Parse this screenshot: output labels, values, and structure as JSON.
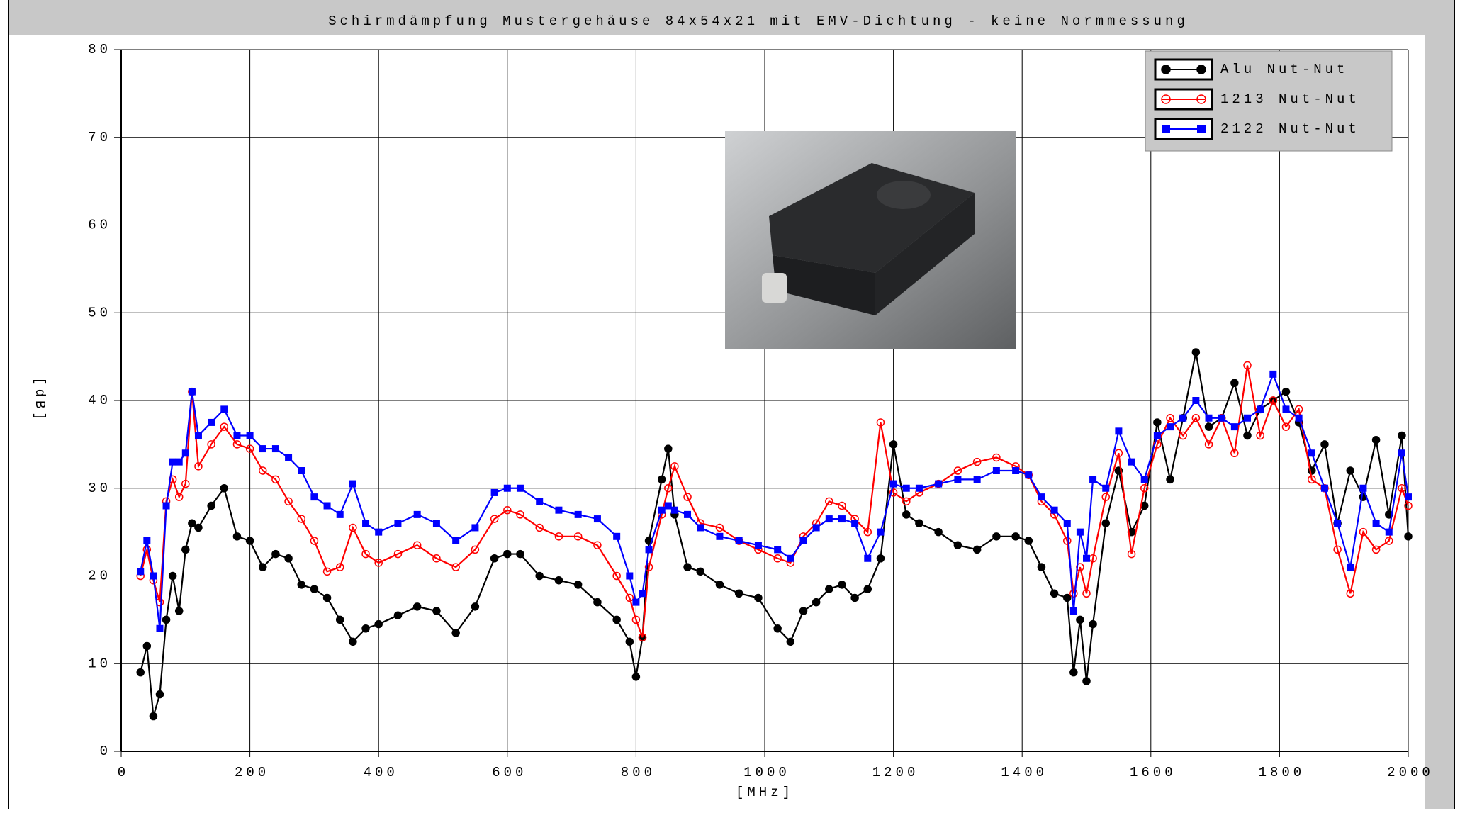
{
  "chart_data": {
    "type": "line",
    "title": "Schirmdämpfung Mustergehäuse 84x54x21 mit EMV-Dichtung - keine Normmessung",
    "xlabel": "[MHz]",
    "ylabel": "[dB]",
    "x": [
      30,
      40,
      50,
      60,
      70,
      80,
      90,
      100,
      110,
      120,
      140,
      160,
      180,
      200,
      220,
      240,
      260,
      280,
      300,
      320,
      340,
      360,
      380,
      400,
      430,
      460,
      490,
      520,
      550,
      580,
      600,
      620,
      650,
      680,
      710,
      740,
      770,
      790,
      800,
      810,
      820,
      840,
      850,
      860,
      880,
      900,
      930,
      960,
      990,
      1020,
      1040,
      1060,
      1080,
      1100,
      1120,
      1140,
      1160,
      1180,
      1200,
      1220,
      1240,
      1270,
      1300,
      1330,
      1360,
      1390,
      1410,
      1430,
      1450,
      1470,
      1480,
      1490,
      1500,
      1510,
      1530,
      1550,
      1570,
      1590,
      1610,
      1630,
      1650,
      1670,
      1690,
      1710,
      1730,
      1750,
      1770,
      1790,
      1810,
      1830,
      1850,
      1870,
      1890,
      1910,
      1930,
      1950,
      1970,
      1990,
      2000
    ],
    "series": [
      {
        "name": "Alu  Nut-Nut",
        "color": "#000000",
        "marker": "filled-circle",
        "values": [
          9,
          12,
          4,
          6.5,
          15,
          20,
          16,
          23,
          26,
          25.5,
          28,
          30,
          24.5,
          24,
          21,
          22.5,
          22,
          19,
          18.5,
          17.5,
          15,
          12.5,
          14,
          14.5,
          15.5,
          16.5,
          16,
          13.5,
          16.5,
          22,
          22.5,
          22.5,
          20,
          19.5,
          19,
          17,
          15,
          12.5,
          8.5,
          13,
          24,
          31,
          34.5,
          27,
          21,
          20.5,
          19,
          18,
          17.5,
          14,
          12.5,
          16,
          17,
          18.5,
          19,
          17.5,
          18.5,
          22,
          35,
          27,
          26,
          25,
          23.5,
          23,
          24.5,
          24.5,
          24,
          21,
          18,
          17.5,
          9,
          15,
          8,
          14.5,
          26,
          32,
          25,
          28,
          37.5,
          31,
          38,
          45.5,
          37,
          38,
          42,
          36,
          39,
          40,
          41,
          37.5,
          32,
          35,
          26,
          32,
          29,
          35.5,
          27,
          36,
          24.5
        ]
      },
      {
        "name": "1213  Nut-Nut",
        "color": "#ff0000",
        "marker": "open-circle",
        "values": [
          20,
          23,
          19.5,
          17,
          28.5,
          31,
          29,
          30.5,
          41,
          32.5,
          35,
          37,
          35,
          34.5,
          32,
          31,
          28.5,
          26.5,
          24,
          20.5,
          21,
          25.5,
          22.5,
          21.5,
          22.5,
          23.5,
          22,
          21,
          23,
          26.5,
          27.5,
          27,
          25.5,
          24.5,
          24.5,
          23.5,
          20,
          17.5,
          15,
          13,
          21,
          27,
          30,
          32.5,
          29,
          26,
          25.5,
          24,
          23,
          22,
          21.5,
          24.5,
          26,
          28.5,
          28,
          26.5,
          25,
          37.5,
          29.5,
          28.5,
          29.5,
          30.5,
          32,
          33,
          33.5,
          32.5,
          31.5,
          28.5,
          27,
          24,
          18,
          21,
          18,
          22,
          29,
          34,
          22.5,
          30,
          35,
          38,
          36,
          38,
          35,
          38,
          34,
          44,
          36,
          40,
          37,
          39,
          31,
          30,
          23,
          18,
          25,
          23,
          24,
          30,
          28
        ]
      },
      {
        "name": "2122  Nut-Nut",
        "color": "#0000ff",
        "marker": "filled-square",
        "values": [
          20.5,
          24,
          20,
          14,
          28,
          33,
          33,
          34,
          41,
          36,
          37.5,
          39,
          36,
          36,
          34.5,
          34.5,
          33.5,
          32,
          29,
          28,
          27,
          30.5,
          26,
          25,
          26,
          27,
          26,
          24,
          25.5,
          29.5,
          30,
          30,
          28.5,
          27.5,
          27,
          26.5,
          24.5,
          20,
          17,
          18,
          23,
          27.5,
          28,
          27.5,
          27,
          25.5,
          24.5,
          24,
          23.5,
          23,
          22,
          24,
          25.5,
          26.5,
          26.5,
          26,
          22,
          25,
          30.5,
          30,
          30,
          30.5,
          31,
          31,
          32,
          32,
          31.5,
          29,
          27.5,
          26,
          16,
          25,
          22,
          31,
          30,
          36.5,
          33,
          31,
          36,
          37,
          38,
          40,
          38,
          38,
          37,
          38,
          39,
          43,
          39,
          38,
          34,
          30,
          26,
          21,
          30,
          26,
          25,
          34,
          29
        ]
      }
    ],
    "xlim": [
      0,
      2000
    ],
    "xticks": [
      0,
      200,
      400,
      600,
      800,
      1000,
      1200,
      1400,
      1600,
      1800,
      2000
    ],
    "ylim": [
      0,
      80
    ],
    "yticks": [
      0,
      10,
      20,
      30,
      40,
      50,
      60,
      70,
      80
    ],
    "grid": true,
    "legend": "upper right"
  }
}
